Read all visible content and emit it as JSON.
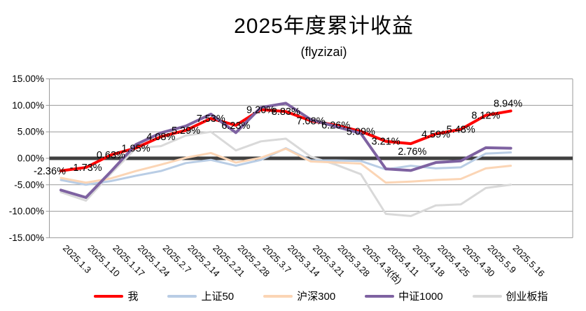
{
  "title": "2025年度累计收益",
  "subtitle": "(flyzizai)",
  "chart_data": {
    "type": "line",
    "title": "2025年度累计收益",
    "subtitle": "(flyzizai)",
    "categories": [
      "2025.1.3",
      "2025.1.10",
      "2025.1.17",
      "2025.1.24",
      "2025.2.7",
      "2025.2.14",
      "2025.2.21",
      "2025.2.28",
      "2025.3.7",
      "2025.3.14",
      "2025.3.21",
      "2025.3.28",
      "2025.4.3(估)",
      "2025.4.11",
      "2025.4.18",
      "2025.4.25",
      "2025.4.30",
      "2025.5.9",
      "2025.5.16"
    ],
    "series": [
      {
        "name": "我",
        "color": "#ff0000",
        "stroke_width": 4,
        "values": [
          -2.36,
          -1.73,
          0.63,
          1.95,
          4.08,
          5.29,
          7.53,
          6.23,
          9.2,
          8.83,
          7.08,
          6.26,
          5.09,
          3.21,
          2.76,
          4.59,
          5.48,
          8.12,
          8.94
        ],
        "labels": [
          "-2.36%",
          "-1.73%",
          "0.63%",
          "1.95%",
          "4.08%",
          "5.29%",
          "7.53%",
          "6.23%",
          "9.20%",
          "8.83%",
          "7.08%",
          "6.26%",
          "5.09%",
          "3.21%",
          "2.76%",
          "4.59%",
          "5.48%",
          "8.12%",
          "8.94%"
        ]
      },
      {
        "name": "上证50",
        "color": "#b9cde5",
        "stroke_width": 3,
        "values": [
          -4.1,
          -5.0,
          -4.3,
          -3.3,
          -2.4,
          -0.9,
          -0.3,
          -1.4,
          -0.3,
          1.9,
          -0.4,
          -0.4,
          -0.5,
          -2.1,
          -1.4,
          -1.9,
          -1.7,
          0.9,
          1.1
        ]
      },
      {
        "name": "沪深300",
        "color": "#fbd5b5",
        "stroke_width": 3,
        "values": [
          -3.7,
          -4.6,
          -3.8,
          -2.4,
          -1.2,
          0.1,
          1.0,
          -0.8,
          0.1,
          1.8,
          -0.6,
          -0.8,
          -1.0,
          -4.6,
          -4.4,
          -4.1,
          -3.9,
          -1.9,
          -1.4
        ]
      },
      {
        "name": "中证1000",
        "color": "#7e62a1",
        "stroke_width": 4,
        "values": [
          -6.0,
          -7.4,
          -2.5,
          2.6,
          4.8,
          6.1,
          8.35,
          4.85,
          9.6,
          10.4,
          7.3,
          6.0,
          4.7,
          -2.0,
          -2.3,
          -0.8,
          -0.5,
          2.0,
          1.9
        ]
      },
      {
        "name": "创业板指",
        "color": "#d9d9d9",
        "stroke_width": 3,
        "values": [
          -6.4,
          -8.0,
          -2.9,
          1.9,
          2.3,
          4.3,
          5.0,
          1.5,
          3.2,
          3.7,
          0.3,
          -1.2,
          -3.0,
          -10.5,
          -10.9,
          -8.9,
          -8.7,
          -5.6,
          -5.0
        ]
      }
    ],
    "y_ticks": [
      "15.00%",
      "10.00%",
      "5.00%",
      "0.00%",
      "-5.00%",
      "-10.00%",
      "-15.00%"
    ],
    "y_tick_values": [
      15,
      10,
      5,
      0,
      -5,
      -10,
      -15
    ],
    "ylim": [
      -15,
      15
    ],
    "grid": true,
    "legend_position": "bottom",
    "colors": {
      "grid_line": "#9a9a9a",
      "zero_line": "#404040",
      "text": "#000000",
      "background": "#ffffff"
    }
  }
}
